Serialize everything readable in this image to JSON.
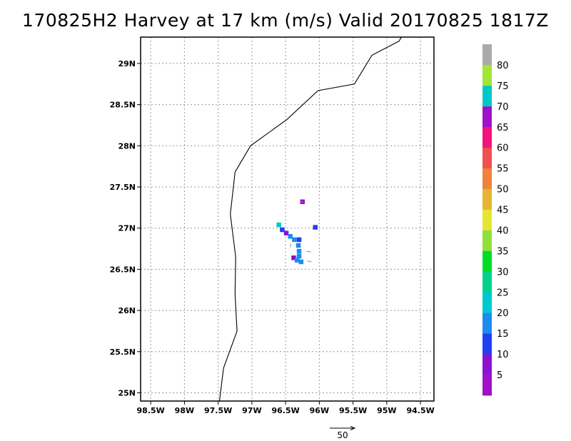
{
  "title": "170825H2 Harvey at 17 km (m/s) Valid 20170825 1817Z",
  "map": {
    "lat_labels": [
      "25N",
      "25.5N",
      "26N",
      "26.5N",
      "27N",
      "27.5N",
      "28N",
      "28.5N",
      "29N"
    ],
    "lon_labels": [
      "98.5W",
      "98W",
      "97.5W",
      "97W",
      "96.5W",
      "96W",
      "95.5W",
      "95W",
      "94.5W"
    ],
    "lat_values": [
      25,
      25.5,
      26,
      26.5,
      27,
      27.5,
      28,
      28.5,
      29
    ],
    "lon_values": [
      -98.5,
      -98,
      -97.5,
      -97,
      -96.5,
      -96,
      -95.5,
      -95,
      -94.5
    ],
    "lon_range": [
      -98.65,
      -94.3
    ],
    "lat_range": [
      24.9,
      29.32
    ],
    "grid": "dotted",
    "coastline": [
      [
        -97.48,
        24.9
      ],
      [
        -97.42,
        25.3
      ],
      [
        -97.22,
        25.75
      ],
      [
        -97.25,
        26.2
      ],
      [
        -97.24,
        26.65
      ],
      [
        -97.32,
        27.17
      ],
      [
        -97.25,
        27.68
      ],
      [
        -97.02,
        28.0
      ],
      [
        -96.48,
        28.32
      ],
      [
        -96.02,
        28.67
      ],
      [
        -95.48,
        28.75
      ],
      [
        -95.22,
        29.1
      ],
      [
        -94.82,
        29.27
      ],
      [
        -94.78,
        29.32
      ]
    ],
    "wind_cells": [
      {
        "lon": -96.25,
        "lat": 27.32,
        "speed": 68
      },
      {
        "lon": -96.6,
        "lat": 27.04,
        "speed": 70
      },
      {
        "lon": -96.55,
        "lat": 26.98,
        "speed": 14
      },
      {
        "lon": -96.49,
        "lat": 26.94,
        "speed": 8
      },
      {
        "lon": -96.43,
        "lat": 26.9,
        "speed": 17
      },
      {
        "lon": -96.37,
        "lat": 26.86,
        "speed": 19
      },
      {
        "lon": -96.3,
        "lat": 26.86,
        "speed": 12
      },
      {
        "lon": -96.06,
        "lat": 27.01,
        "speed": 10
      },
      {
        "lon": -96.31,
        "lat": 26.79,
        "speed": 16
      },
      {
        "lon": -96.3,
        "lat": 26.72,
        "speed": 17
      },
      {
        "lon": -96.3,
        "lat": 26.66,
        "speed": 15
      },
      {
        "lon": -96.38,
        "lat": 26.64,
        "speed": 9
      },
      {
        "lon": -96.33,
        "lat": 26.61,
        "speed": 16
      },
      {
        "lon": -96.27,
        "lat": 26.59,
        "speed": 17
      }
    ],
    "vectors": [
      {
        "lon": -96.42,
        "lat": 26.81,
        "u": -1,
        "v": -4
      },
      {
        "lon": -96.19,
        "lat": 26.72,
        "u": 5,
        "v": -1
      },
      {
        "lon": -96.18,
        "lat": 26.6,
        "u": 5,
        "v": -1
      },
      {
        "lon": -96.24,
        "lat": 27.32,
        "u": -3,
        "v": 0
      }
    ]
  },
  "colorbar": {
    "labels": [
      "5",
      "10",
      "15",
      "20",
      "25",
      "30",
      "35",
      "40",
      "45",
      "50",
      "55",
      "60",
      "65",
      "70",
      "75",
      "80"
    ],
    "colors": [
      "#a010c8",
      "#8c10d0",
      "#2040f0",
      "#1a8cf0",
      "#00c8d0",
      "#00d28c",
      "#00dc28",
      "#90e03c",
      "#e6e632",
      "#e6b432",
      "#f0823c",
      "#f05050",
      "#f0147c",
      "#a010c8",
      "#00c8c8",
      "#a0e632",
      "#aaaaaa"
    ]
  },
  "vector_scale": {
    "label": "50"
  }
}
